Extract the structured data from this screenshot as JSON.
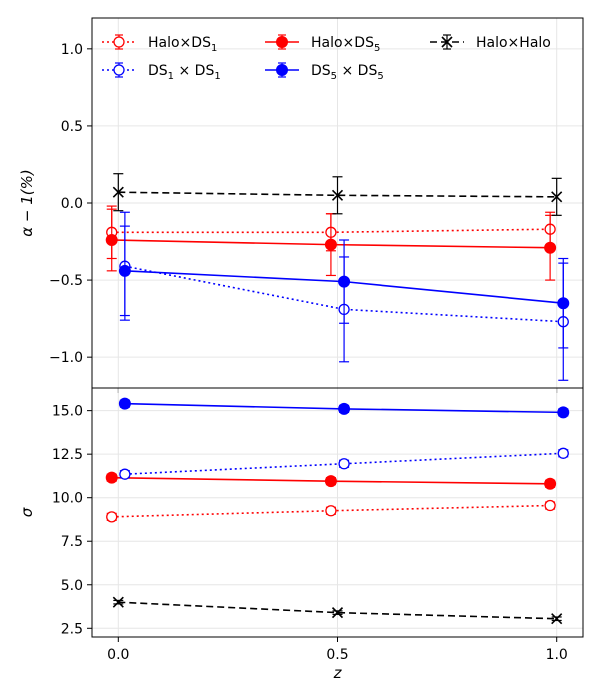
{
  "chart_data": [
    {
      "type": "line",
      "panel": "top",
      "ylabel": "α − 1(%)",
      "xlim": [
        -0.06,
        1.06
      ],
      "ylim": [
        -1.2,
        1.2
      ],
      "yticks": [
        -1.0,
        -0.5,
        0.0,
        0.5,
        1.0
      ],
      "ytick_labels": [
        "−1.0",
        "−0.5",
        "0.0",
        "0.5",
        "1.0"
      ],
      "grid": true,
      "legend_position": "top",
      "series": [
        {
          "id": "halo_ds1",
          "name": "Halo×DS",
          "sub": "1",
          "color": "#ff0000",
          "dash": "2,3",
          "marker": "circle-open",
          "x": [
            -0.015,
            0.485,
            0.985
          ],
          "y": [
            -0.19,
            -0.19,
            -0.17
          ],
          "err": [
            0.17,
            0.12,
            0.11
          ]
        },
        {
          "id": "halo_ds5",
          "name": "Halo×DS",
          "sub": "5",
          "color": "#ff0000",
          "dash": "",
          "marker": "circle-filled",
          "x": [
            -0.015,
            0.485,
            0.985
          ],
          "y": [
            -0.24,
            -0.27,
            -0.29
          ],
          "err": [
            0.2,
            0.2,
            0.21
          ]
        },
        {
          "id": "ds1_ds1",
          "name": "DS",
          "sub": "1",
          "name2": " × DS",
          "sub2": "1",
          "color": "#0000ff",
          "dash": "2,3",
          "marker": "circle-open",
          "x": [
            0.015,
            0.515,
            1.015
          ],
          "y": [
            -0.41,
            -0.69,
            -0.77
          ],
          "err": [
            0.35,
            0.34,
            0.38
          ]
        },
        {
          "id": "ds5_ds5",
          "name": "DS",
          "sub": "5",
          "name2": " × DS",
          "sub2": "5",
          "color": "#0000ff",
          "dash": "",
          "marker": "circle-filled",
          "x": [
            0.015,
            0.515,
            1.015
          ],
          "y": [
            -0.44,
            -0.51,
            -0.65
          ],
          "err": [
            0.29,
            0.27,
            0.29
          ]
        },
        {
          "id": "halo_halo",
          "name": "Halo×Halo",
          "color": "#000000",
          "dash": "7,4",
          "marker": "x",
          "x": [
            0.0,
            0.5,
            1.0
          ],
          "y": [
            0.07,
            0.05,
            0.04
          ],
          "err": [
            0.12,
            0.12,
            0.12
          ]
        }
      ]
    },
    {
      "type": "line",
      "panel": "bottom",
      "xlabel": "z",
      "ylabel": "σ",
      "xlim": [
        -0.06,
        1.06
      ],
      "ylim": [
        2.0,
        16.3
      ],
      "yticks": [
        2.5,
        5.0,
        7.5,
        10.0,
        12.5,
        15.0
      ],
      "ytick_labels": [
        "2.5",
        "5.0",
        "7.5",
        "10.0",
        "12.5",
        "15.0"
      ],
      "xticks": [
        0.0,
        0.5,
        1.0
      ],
      "xtick_labels": [
        "0.0",
        "0.5",
        "1.0"
      ],
      "grid": true,
      "series": [
        {
          "id": "halo_ds1",
          "color": "#ff0000",
          "dash": "2,3",
          "marker": "circle-open",
          "x": [
            -0.015,
            0.485,
            0.985
          ],
          "y": [
            8.9,
            9.25,
            9.55
          ],
          "err": [
            0.2,
            0.2,
            0.2
          ]
        },
        {
          "id": "halo_ds5",
          "color": "#ff0000",
          "dash": "",
          "marker": "circle-filled",
          "x": [
            -0.015,
            0.485,
            0.985
          ],
          "y": [
            11.15,
            10.95,
            10.8
          ],
          "err": [
            0.2,
            0.2,
            0.2
          ]
        },
        {
          "id": "ds1_ds1",
          "color": "#0000ff",
          "dash": "2,3",
          "marker": "circle-open",
          "x": [
            0.015,
            0.515,
            1.015
          ],
          "y": [
            11.35,
            11.95,
            12.55
          ],
          "err": [
            0.2,
            0.2,
            0.2
          ]
        },
        {
          "id": "ds5_ds5",
          "color": "#0000ff",
          "dash": "",
          "marker": "circle-filled",
          "x": [
            0.015,
            0.515,
            1.015
          ],
          "y": [
            15.4,
            15.1,
            14.9
          ],
          "err": [
            0.2,
            0.2,
            0.2
          ]
        },
        {
          "id": "halo_halo",
          "color": "#000000",
          "dash": "7,4",
          "marker": "x",
          "x": [
            0.0,
            0.5,
            1.0
          ],
          "y": [
            4.0,
            3.4,
            3.05
          ],
          "err": [
            0.1,
            0.1,
            0.1
          ]
        }
      ]
    }
  ]
}
